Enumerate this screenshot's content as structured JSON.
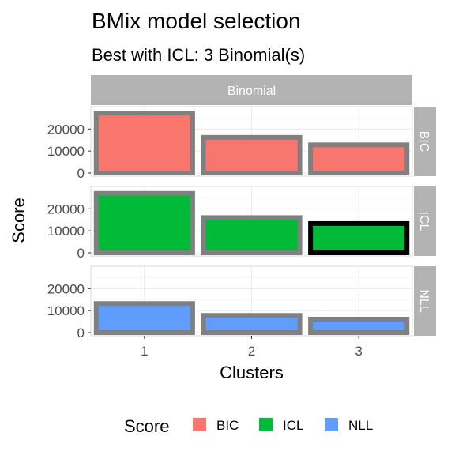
{
  "chart_data": {
    "type": "bar",
    "title": "BMix model selection",
    "subtitle": "Best with ICL: 3 Binomial(s)",
    "xlabel": "Clusters",
    "ylabel": "Score",
    "column_strip": "Binomial",
    "categories": [
      "1",
      "2",
      "3"
    ],
    "ylim": [
      0,
      28000
    ],
    "yticks": [
      0,
      10000,
      20000
    ],
    "ytick_labels": [
      "0",
      "10000",
      "20000"
    ],
    "grid": true,
    "legend_position": "bottom",
    "legend_title": "Score",
    "best": {
      "panel": "ICL",
      "cluster": "3"
    },
    "colors": {
      "BIC": "#F8766D",
      "ICL": "#00BA38",
      "NLL": "#619CFF",
      "bar_outline": "#808080",
      "best_outline": "#000000",
      "strip": "#B3B3B3",
      "grid": "#EBEBEB"
    },
    "series": [
      {
        "name": "BIC",
        "values": [
          27200,
          16200,
          12800
        ]
      },
      {
        "name": "ICL",
        "values": [
          27000,
          16000,
          13300
        ]
      },
      {
        "name": "NLL",
        "values": [
          13200,
          7800,
          6100
        ]
      }
    ]
  }
}
